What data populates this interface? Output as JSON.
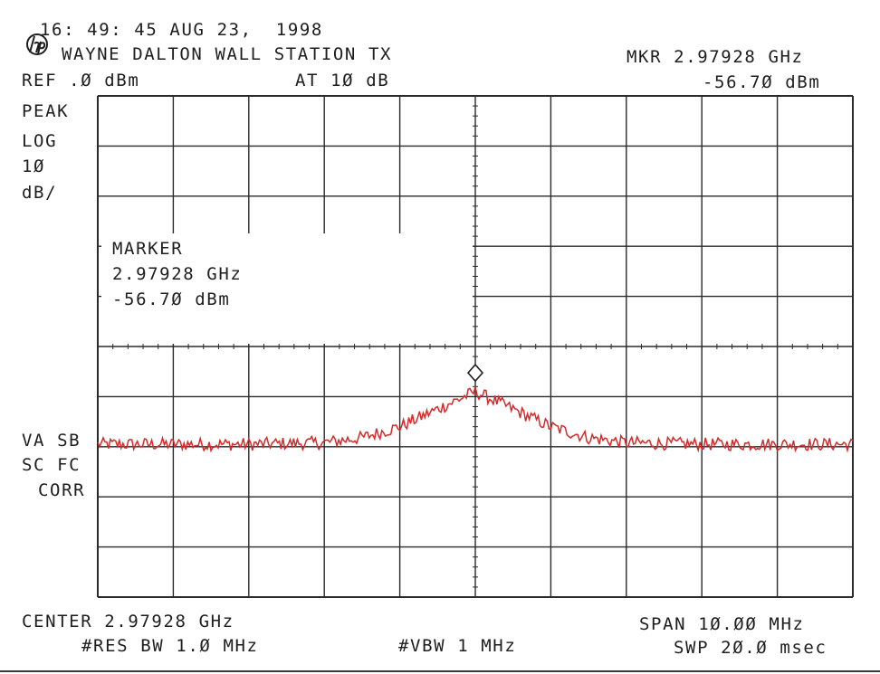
{
  "header": {
    "timestamp": "16: 49: 45 AUG 23,  1998",
    "title": "WAYNE DALTON WALL STATION TX",
    "ref_level": "REF .Ø dBm",
    "attenuation": "AT 1Ø dB",
    "marker_freq": "MKR 2.97928 GHz",
    "marker_level": "-56.7Ø dBm"
  },
  "left_labels": {
    "detector": "PEAK",
    "scale_mode": "LOG",
    "scale_value": "1Ø",
    "scale_unit": "dB/",
    "va_sb": "VA SB",
    "sc_fc": "SC FC",
    "corr": "CORR"
  },
  "marker_box": {
    "title": "MARKER",
    "freq": "2.97928 GHz",
    "level": "-56.7Ø dBm"
  },
  "footer": {
    "center": "CENTER 2.97928 GHz",
    "span": "SPAN 1Ø.ØØ MHz",
    "res_bw": "#RES BW 1.Ø MHz",
    "vbw": "#VBW 1 MHz",
    "sweep": "SWP 2Ø.Ø msec"
  },
  "colors": {
    "trace": "#d42a2a",
    "grid": "#2a2a2a",
    "text": "#1e1e1e"
  },
  "icons": {
    "logo": "hp-logo-icon",
    "marker": "diamond-marker-icon"
  },
  "chart_data": {
    "type": "line",
    "x_units": "GHz",
    "y_units": "dBm",
    "center_ghz": 2.97928,
    "span_mhz": 10.0,
    "ylim": [
      -100,
      0
    ],
    "y_divisions": 10,
    "x_divisions": 10,
    "grid": true,
    "series": [
      {
        "x": [
          2.97428,
          2.97528,
          2.97628,
          2.97728,
          2.97778,
          2.97828,
          2.97878,
          2.97928,
          2.97978,
          2.98028,
          2.98078,
          2.98128,
          2.98228,
          2.98328,
          2.98428
        ],
        "y": [
          -69.5,
          -69.5,
          -69.5,
          -69.2,
          -68.2,
          -66.0,
          -62.5,
          -59.0,
          -62.5,
          -66.0,
          -68.2,
          -69.2,
          -69.5,
          -69.5,
          -69.5
        ]
      }
    ],
    "marker": {
      "x": 2.97928,
      "y": -56.7
    }
  }
}
